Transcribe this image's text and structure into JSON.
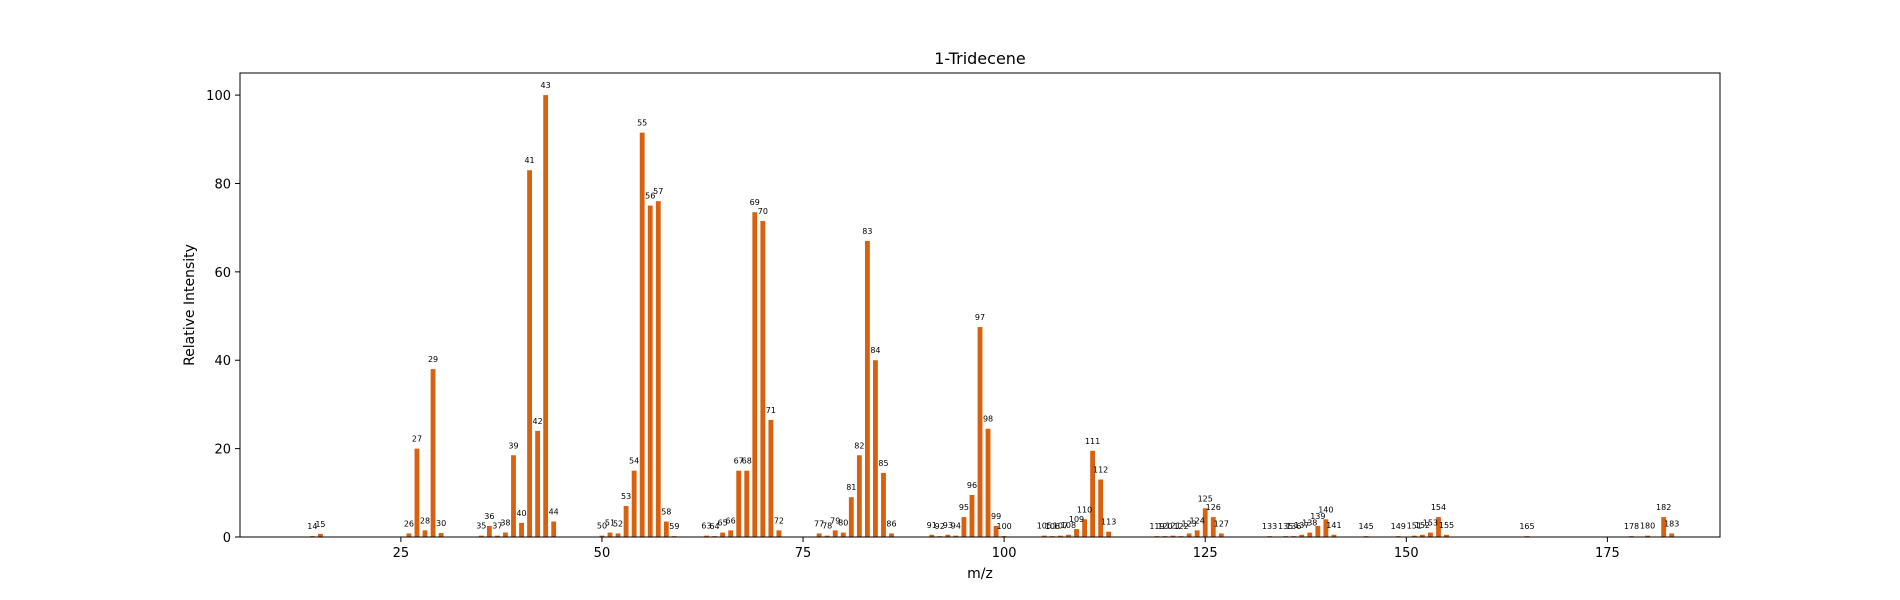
{
  "chart_data": {
    "type": "bar",
    "title": "1-Tridecene",
    "xlabel": "m/z",
    "ylabel": "Relative Intensity",
    "xlim": [
      5,
      189
    ],
    "ylim": [
      0,
      105
    ],
    "xticks": [
      25,
      50,
      75,
      100,
      125,
      150,
      175
    ],
    "yticks": [
      0,
      20,
      40,
      60,
      80,
      100
    ],
    "grid": false,
    "legend": "none",
    "bar_color": "#d9600f",
    "points": [
      {
        "mz": 14,
        "intensity": 0.2
      },
      {
        "mz": 15,
        "intensity": 0.7
      },
      {
        "mz": 26,
        "intensity": 0.8
      },
      {
        "mz": 27,
        "intensity": 20.0
      },
      {
        "mz": 28,
        "intensity": 1.5
      },
      {
        "mz": 29,
        "intensity": 38.0
      },
      {
        "mz": 30,
        "intensity": 0.9
      },
      {
        "mz": 35,
        "intensity": 0.3
      },
      {
        "mz": 36,
        "intensity": 2.5
      },
      {
        "mz": 37,
        "intensity": 0.3
      },
      {
        "mz": 38,
        "intensity": 1.0
      },
      {
        "mz": 39,
        "intensity": 18.5
      },
      {
        "mz": 40,
        "intensity": 3.2
      },
      {
        "mz": 41,
        "intensity": 83.0
      },
      {
        "mz": 42,
        "intensity": 24.0
      },
      {
        "mz": 43,
        "intensity": 100.0
      },
      {
        "mz": 44,
        "intensity": 3.5
      },
      {
        "mz": 50,
        "intensity": 0.3
      },
      {
        "mz": 51,
        "intensity": 1.0
      },
      {
        "mz": 52,
        "intensity": 0.8
      },
      {
        "mz": 53,
        "intensity": 7.0
      },
      {
        "mz": 54,
        "intensity": 15.0
      },
      {
        "mz": 55,
        "intensity": 91.5
      },
      {
        "mz": 56,
        "intensity": 75.0
      },
      {
        "mz": 57,
        "intensity": 76.0
      },
      {
        "mz": 58,
        "intensity": 3.5
      },
      {
        "mz": 59,
        "intensity": 0.2
      },
      {
        "mz": 63,
        "intensity": 0.3
      },
      {
        "mz": 64,
        "intensity": 0.2
      },
      {
        "mz": 65,
        "intensity": 1.0
      },
      {
        "mz": 66,
        "intensity": 1.5
      },
      {
        "mz": 67,
        "intensity": 15.0
      },
      {
        "mz": 68,
        "intensity": 15.0
      },
      {
        "mz": 69,
        "intensity": 73.5
      },
      {
        "mz": 70,
        "intensity": 71.5
      },
      {
        "mz": 71,
        "intensity": 26.5
      },
      {
        "mz": 72,
        "intensity": 1.5
      },
      {
        "mz": 77,
        "intensity": 0.8
      },
      {
        "mz": 78,
        "intensity": 0.3
      },
      {
        "mz": 79,
        "intensity": 1.5
      },
      {
        "mz": 80,
        "intensity": 1.0
      },
      {
        "mz": 81,
        "intensity": 9.0
      },
      {
        "mz": 82,
        "intensity": 18.5
      },
      {
        "mz": 83,
        "intensity": 67.0
      },
      {
        "mz": 84,
        "intensity": 40.0
      },
      {
        "mz": 85,
        "intensity": 14.5
      },
      {
        "mz": 86,
        "intensity": 0.8
      },
      {
        "mz": 91,
        "intensity": 0.5
      },
      {
        "mz": 92,
        "intensity": 0.2
      },
      {
        "mz": 93,
        "intensity": 0.5
      },
      {
        "mz": 94,
        "intensity": 0.3
      },
      {
        "mz": 95,
        "intensity": 4.5
      },
      {
        "mz": 96,
        "intensity": 9.5
      },
      {
        "mz": 97,
        "intensity": 47.5
      },
      {
        "mz": 98,
        "intensity": 24.5
      },
      {
        "mz": 99,
        "intensity": 2.5
      },
      {
        "mz": 100,
        "intensity": 0.2
      },
      {
        "mz": 105,
        "intensity": 0.3
      },
      {
        "mz": 106,
        "intensity": 0.2
      },
      {
        "mz": 107,
        "intensity": 0.3
      },
      {
        "mz": 108,
        "intensity": 0.5
      },
      {
        "mz": 109,
        "intensity": 1.8
      },
      {
        "mz": 110,
        "intensity": 4.0
      },
      {
        "mz": 111,
        "intensity": 19.5
      },
      {
        "mz": 112,
        "intensity": 13.0
      },
      {
        "mz": 113,
        "intensity": 1.2
      },
      {
        "mz": 119,
        "intensity": 0.2
      },
      {
        "mz": 120,
        "intensity": 0.2
      },
      {
        "mz": 121,
        "intensity": 0.3
      },
      {
        "mz": 122,
        "intensity": 0.2
      },
      {
        "mz": 123,
        "intensity": 0.8
      },
      {
        "mz": 124,
        "intensity": 1.5
      },
      {
        "mz": 125,
        "intensity": 6.5
      },
      {
        "mz": 126,
        "intensity": 4.5
      },
      {
        "mz": 127,
        "intensity": 0.8
      },
      {
        "mz": 133,
        "intensity": 0.2
      },
      {
        "mz": 135,
        "intensity": 0.2
      },
      {
        "mz": 136,
        "intensity": 0.2
      },
      {
        "mz": 137,
        "intensity": 0.5
      },
      {
        "mz": 138,
        "intensity": 1.0
      },
      {
        "mz": 139,
        "intensity": 2.5
      },
      {
        "mz": 140,
        "intensity": 4.0
      },
      {
        "mz": 141,
        "intensity": 0.5
      },
      {
        "mz": 145,
        "intensity": 0.2
      },
      {
        "mz": 149,
        "intensity": 0.2
      },
      {
        "mz": 151,
        "intensity": 0.3
      },
      {
        "mz": 152,
        "intensity": 0.5
      },
      {
        "mz": 153,
        "intensity": 1.0
      },
      {
        "mz": 154,
        "intensity": 4.5
      },
      {
        "mz": 155,
        "intensity": 0.5
      },
      {
        "mz": 165,
        "intensity": 0.2
      },
      {
        "mz": 178,
        "intensity": 0.2
      },
      {
        "mz": 180,
        "intensity": 0.3
      },
      {
        "mz": 182,
        "intensity": 4.5
      },
      {
        "mz": 183,
        "intensity": 0.8
      }
    ]
  }
}
